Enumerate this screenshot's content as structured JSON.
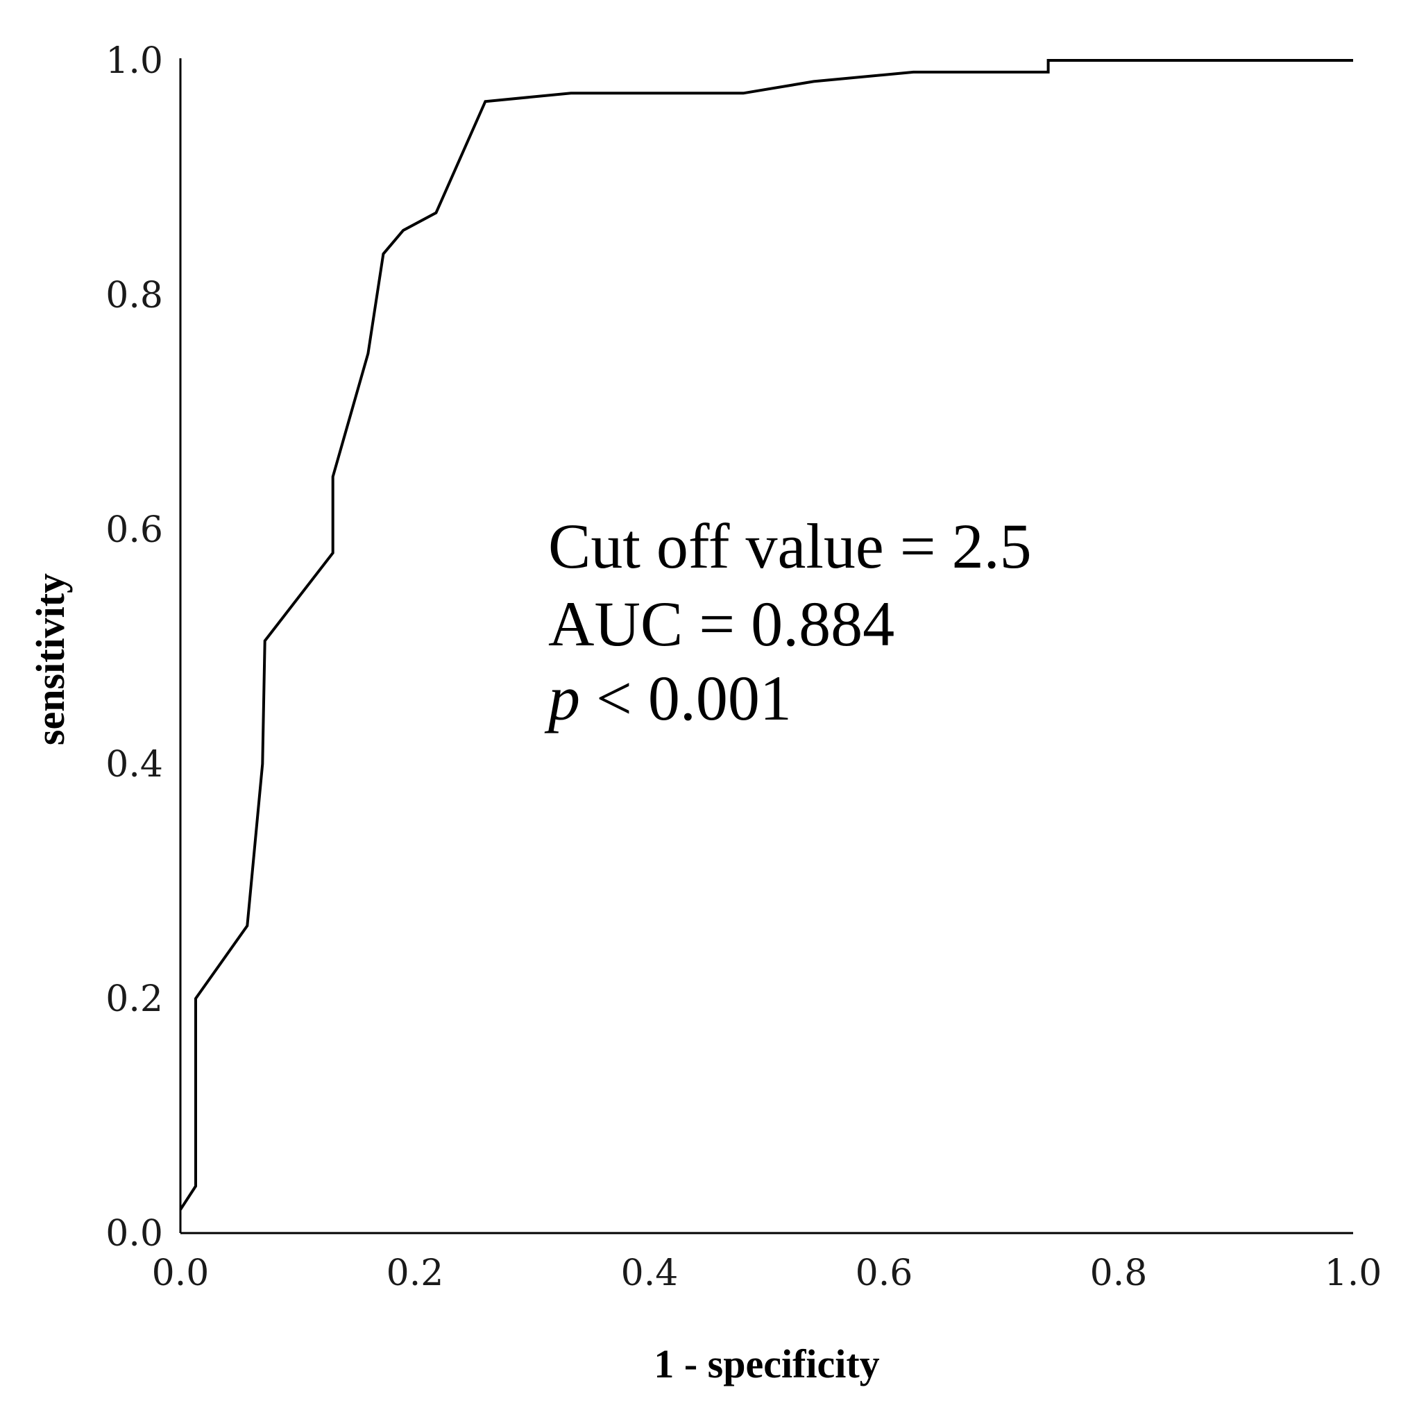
{
  "chart_data": {
    "type": "line",
    "title": "",
    "xlabel": "1 - specificity",
    "ylabel": "sensitivity",
    "xlim": [
      0,
      1
    ],
    "ylim": [
      0,
      1
    ],
    "x_ticks": [
      "0.0",
      "0.2",
      "0.4",
      "0.6",
      "0.8",
      "1.0"
    ],
    "y_ticks": [
      "0.0",
      "0.2",
      "0.4",
      "0.6",
      "0.8",
      "1.0"
    ],
    "grid": false,
    "legend": "none",
    "line_color": "#000000",
    "series": [
      {
        "points": [
          [
            0.0,
            0.02
          ],
          [
            0.013,
            0.04
          ],
          [
            0.013,
            0.2
          ],
          [
            0.057,
            0.262
          ],
          [
            0.07,
            0.4
          ],
          [
            0.072,
            0.505
          ],
          [
            0.13,
            0.58
          ],
          [
            0.13,
            0.645
          ],
          [
            0.16,
            0.75
          ],
          [
            0.173,
            0.835
          ],
          [
            0.19,
            0.855
          ],
          [
            0.218,
            0.87
          ],
          [
            0.26,
            0.965
          ],
          [
            0.333,
            0.972
          ],
          [
            0.48,
            0.972
          ],
          [
            0.54,
            0.982
          ],
          [
            0.625,
            0.99
          ],
          [
            0.74,
            0.99
          ],
          [
            0.74,
            1.0
          ],
          [
            1.0,
            1.0
          ]
        ]
      }
    ],
    "annotations": {
      "cutoff": "Cut off value = 2.5",
      "auc": "AUC = 0.884",
      "p_symbol": "p",
      "p_rest": " < 0.001"
    }
  }
}
